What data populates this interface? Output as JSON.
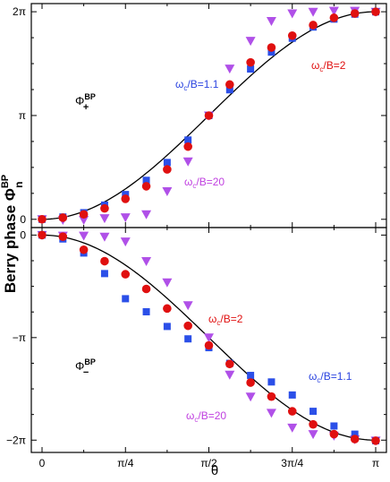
{
  "figure": {
    "ylabel_text": "Berry phase Φ",
    "ylabel_sup": "BP",
    "ylabel_sub": "n",
    "xlabel": "θ"
  },
  "chart_data": [
    {
      "type": "scatter",
      "panel": "top",
      "x_ticks": [
        "0",
        "π/4",
        "π/2",
        "3π/4",
        "π"
      ],
      "y_ticks": [
        "0",
        "π",
        "2π"
      ],
      "xlim": [
        0,
        3.1416
      ],
      "ylim": [
        -0.25,
        6.53
      ],
      "x": [
        0,
        0.1963,
        0.3927,
        0.589,
        0.7854,
        0.9817,
        1.1781,
        1.3744,
        1.5708,
        1.7671,
        1.9635,
        2.1598,
        2.3562,
        2.5525,
        2.7489,
        2.9452,
        3.1416
      ],
      "panel_label": {
        "base": "Φ",
        "sup": "BP",
        "sub": "+"
      },
      "annotations": [
        {
          "text": "ω",
          "sub": "c",
          "rest": "/B=1.1",
          "color": "#2b44e0",
          "series": "ωc/B=1.1"
        },
        {
          "text": "ω",
          "sub": "c",
          "rest": "/B=2",
          "color": "#e01010",
          "series": "ωc/B=2"
        },
        {
          "text": "ω",
          "sub": "c",
          "rest": "/B=20",
          "color": "#c040e0",
          "series": "ωc/B=20"
        }
      ],
      "curve": {
        "name": "analytic",
        "formula": "pi*(1-cos(theta))",
        "color": "#000000"
      },
      "series": [
        {
          "name": "ωc/B=1.1",
          "marker": "square",
          "color": "#2b4fe8",
          "values": [
            0.0,
            0.07,
            0.2,
            0.43,
            0.75,
            1.18,
            1.72,
            2.4,
            3.14,
            3.92,
            4.55,
            5.06,
            5.48,
            5.82,
            6.06,
            6.21,
            6.28
          ]
        },
        {
          "name": "ωc/B=2",
          "marker": "circle",
          "color": "#e01010",
          "values": [
            0.0,
            0.05,
            0.15,
            0.33,
            0.62,
            1.0,
            1.51,
            2.2,
            3.14,
            4.08,
            4.75,
            5.2,
            5.56,
            5.88,
            6.1,
            6.23,
            6.28
          ]
        },
        {
          "name": "ωc/B=20",
          "marker": "triangle-down",
          "color": "#b050e8",
          "values": [
            0.0,
            -0.02,
            -0.02,
            0.03,
            0.06,
            0.15,
            0.85,
            1.75,
            3.14,
            4.56,
            5.4,
            6.0,
            6.23,
            6.28,
            6.31,
            6.31,
            6.28
          ]
        }
      ]
    },
    {
      "type": "scatter",
      "panel": "bottom",
      "x_ticks": [
        "0",
        "π/4",
        "π/2",
        "3π/4",
        "π"
      ],
      "y_ticks": [
        "0",
        "−π",
        "−2π"
      ],
      "xlim": [
        0,
        3.1416
      ],
      "ylim": [
        -6.66,
        0.23
      ],
      "x": [
        0,
        0.1963,
        0.3927,
        0.589,
        0.7854,
        0.9817,
        1.1781,
        1.3744,
        1.5708,
        1.7671,
        1.9635,
        2.1598,
        2.3562,
        2.5525,
        2.7489,
        2.9452,
        3.1416
      ],
      "panel_label": {
        "base": "Φ",
        "sup": "BP",
        "sub": "−"
      },
      "annotations": [
        {
          "text": "ω",
          "sub": "c",
          "rest": "/B=2",
          "color": "#e01010",
          "series": "ωc/B=2"
        },
        {
          "text": "ω",
          "sub": "c",
          "rest": "/B=1.1",
          "color": "#2b44e0",
          "series": "ωc/B=1.1"
        },
        {
          "text": "ω",
          "sub": "c",
          "rest": "/B=20",
          "color": "#c040e0",
          "series": "ωc/B=20"
        }
      ],
      "curve": {
        "name": "analytic",
        "formula": "-pi*(1-cos(theta))",
        "color": "#000000"
      },
      "series": [
        {
          "name": "ωc/B=1.1",
          "marker": "square",
          "color": "#2b4fe8",
          "values": [
            0.0,
            -0.12,
            -0.55,
            -1.18,
            -1.95,
            -2.35,
            -2.8,
            -3.18,
            -3.45,
            -3.93,
            -4.3,
            -4.5,
            -4.9,
            -5.4,
            -5.85,
            -6.1,
            -6.3
          ]
        },
        {
          "name": "ωc/B=2",
          "marker": "circle",
          "color": "#e01010",
          "values": [
            0.0,
            -0.05,
            -0.45,
            -0.8,
            -1.2,
            -1.65,
            -2.25,
            -2.78,
            -3.38,
            -3.95,
            -4.52,
            -4.95,
            -5.4,
            -5.8,
            -6.1,
            -6.25,
            -6.3
          ]
        },
        {
          "name": "ωc/B=20",
          "marker": "triangle-down",
          "color": "#b050e8",
          "values": [
            0.0,
            -0.02,
            -0.02,
            -0.05,
            -0.2,
            -0.8,
            -1.45,
            -2.15,
            -3.14,
            -4.28,
            -4.95,
            -5.45,
            -5.9,
            -6.1,
            -6.15,
            -6.26,
            -6.3
          ]
        }
      ]
    }
  ]
}
